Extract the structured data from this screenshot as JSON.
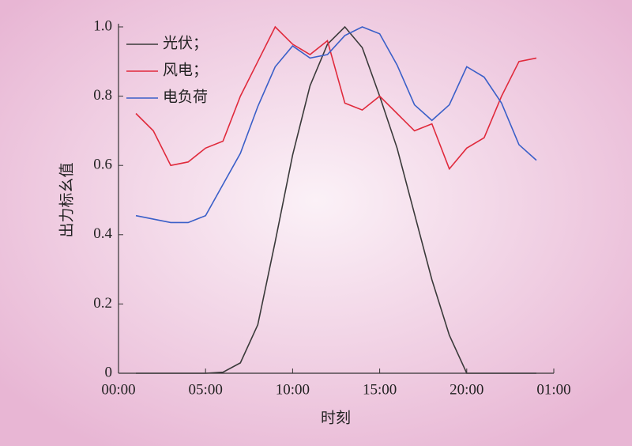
{
  "chart_data": {
    "type": "line",
    "xlabel": "时刻",
    "ylabel": "出力标幺值",
    "x": [
      1,
      2,
      3,
      4,
      5,
      6,
      7,
      8,
      9,
      10,
      11,
      12,
      13,
      14,
      15,
      16,
      17,
      18,
      19,
      20,
      21,
      22,
      23,
      24
    ],
    "series": [
      {
        "name": "光伏；",
        "color": "#3a3a3a",
        "values": [
          0,
          0,
          0,
          0,
          0,
          0.003,
          0.03,
          0.14,
          0.38,
          0.63,
          0.83,
          0.95,
          1.0,
          0.94,
          0.8,
          0.65,
          0.46,
          0.27,
          0.11,
          0,
          0,
          0,
          0,
          0
        ]
      },
      {
        "name": "风电；",
        "color": "#e02a3c",
        "values": [
          0.75,
          0.7,
          0.6,
          0.61,
          0.65,
          0.67,
          0.8,
          0.9,
          1.0,
          0.95,
          0.92,
          0.96,
          0.78,
          0.76,
          0.8,
          0.75,
          0.7,
          0.72,
          0.59,
          0.65,
          0.68,
          0.8,
          0.9,
          0.91
        ]
      },
      {
        "name": "电负荷",
        "color": "#3a5fc8",
        "values": [
          0.455,
          0.445,
          0.435,
          0.435,
          0.455,
          0.545,
          0.635,
          0.77,
          0.885,
          0.945,
          0.91,
          0.92,
          0.975,
          1.0,
          0.98,
          0.89,
          0.775,
          0.73,
          0.775,
          0.885,
          0.855,
          0.78,
          0.66,
          0.615
        ]
      }
    ],
    "xlim": [
      0,
      25
    ],
    "xticks": [
      {
        "value": 0,
        "label": "00:00"
      },
      {
        "value": 5,
        "label": "05:00"
      },
      {
        "value": 10,
        "label": "10:00"
      },
      {
        "value": 15,
        "label": "15:00"
      },
      {
        "value": 20,
        "label": "20:00"
      },
      {
        "value": 25,
        "label": "01:00"
      }
    ],
    "ylim": [
      0,
      1
    ],
    "yticks": [
      0,
      0.2,
      0.4,
      0.6,
      0.8,
      {
        "value": 1,
        "label": "1.0"
      }
    ],
    "legend": "upper left"
  }
}
